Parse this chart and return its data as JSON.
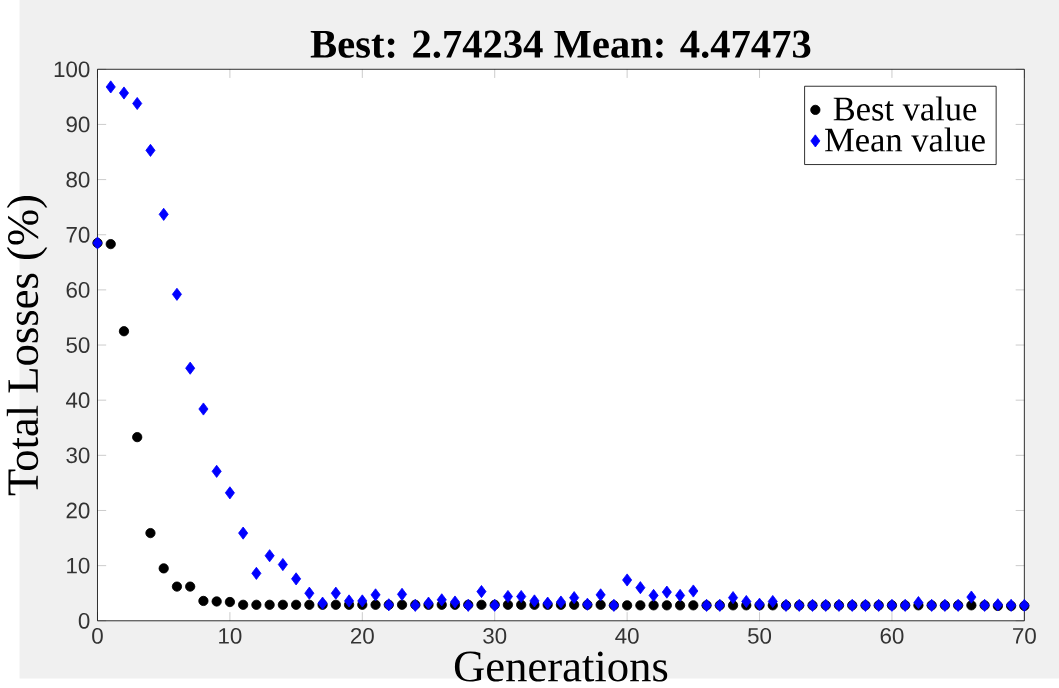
{
  "chart_data": {
    "type": "scatter",
    "title": "Best: 2.74234 Mean: 4.47473",
    "xlabel": "Generations",
    "ylabel": "Total Losses (%)",
    "x": [
      0,
      1,
      2,
      3,
      4,
      5,
      6,
      7,
      8,
      9,
      10,
      11,
      12,
      13,
      14,
      15,
      16,
      17,
      18,
      19,
      20,
      21,
      22,
      23,
      24,
      25,
      26,
      27,
      28,
      29,
      30,
      31,
      32,
      33,
      34,
      35,
      36,
      37,
      38,
      39,
      40,
      41,
      42,
      43,
      44,
      45,
      46,
      47,
      48,
      49,
      50,
      51,
      52,
      53,
      54,
      55,
      56,
      57,
      58,
      59,
      60,
      61,
      62,
      63,
      64,
      65,
      66,
      67,
      68,
      69,
      70
    ],
    "series": [
      {
        "name": "Best value",
        "color": "#000000",
        "marker": "circle",
        "values": [
          68.5,
          68.3,
          52.5,
          33.3,
          15.9,
          9.5,
          6.2,
          6.2,
          3.6,
          3.5,
          3.4,
          2.9,
          2.9,
          2.9,
          2.9,
          2.9,
          2.9,
          2.9,
          2.9,
          2.9,
          2.9,
          2.9,
          2.9,
          2.9,
          2.9,
          2.9,
          2.9,
          2.9,
          2.9,
          2.9,
          2.9,
          2.9,
          2.9,
          2.9,
          2.9,
          2.9,
          2.9,
          2.9,
          2.9,
          2.8,
          2.8,
          2.8,
          2.8,
          2.8,
          2.8,
          2.8,
          2.8,
          2.8,
          2.8,
          2.8,
          2.8,
          2.8,
          2.8,
          2.8,
          2.8,
          2.8,
          2.8,
          2.8,
          2.8,
          2.8,
          2.8,
          2.8,
          2.8,
          2.8,
          2.8,
          2.8,
          2.8,
          2.8,
          2.7,
          2.7,
          2.7
        ]
      },
      {
        "name": "Mean value",
        "color": "#0000ff",
        "marker": "diamond",
        "values": [
          68.5,
          96.8,
          95.7,
          93.8,
          85.3,
          73.7,
          59.2,
          45.8,
          38.4,
          27.1,
          23.2,
          15.9,
          8.6,
          11.8,
          10.2,
          7.6,
          5.0,
          3.2,
          5.0,
          3.6,
          3.6,
          4.7,
          2.9,
          4.8,
          2.8,
          3.2,
          3.8,
          3.4,
          2.8,
          5.3,
          2.8,
          4.4,
          4.4,
          3.6,
          3.2,
          3.4,
          4.2,
          3.0,
          4.7,
          2.8,
          7.4,
          6.0,
          4.6,
          5.2,
          4.6,
          5.4,
          2.8,
          2.8,
          4.2,
          3.5,
          3.0,
          3.5,
          2.8,
          2.8,
          2.8,
          2.8,
          2.8,
          2.8,
          2.8,
          2.8,
          2.8,
          2.8,
          3.3,
          2.8,
          2.8,
          2.8,
          4.3,
          2.8,
          2.9,
          2.8,
          2.8
        ]
      }
    ],
    "xlim": [
      0,
      70
    ],
    "ylim": [
      0,
      100
    ],
    "xticks": [
      0,
      10,
      20,
      30,
      40,
      50,
      60,
      70
    ],
    "yticks": [
      0,
      10,
      20,
      30,
      40,
      50,
      60,
      70,
      80,
      90,
      100
    ],
    "legend": "top right",
    "grid": false
  }
}
